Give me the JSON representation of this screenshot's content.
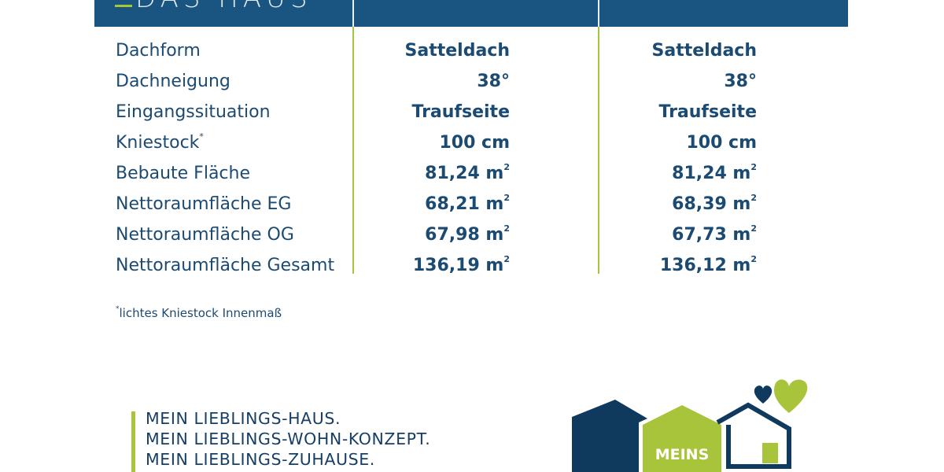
{
  "header": {
    "title": "DAS HAUS"
  },
  "rows": [
    {
      "label": "Dachform",
      "sup": "",
      "col1": "Satteldach",
      "col2": "Satteldach",
      "unit": ""
    },
    {
      "label": "Dachneigung",
      "sup": "",
      "col1": "38°",
      "col2": "38°",
      "unit": ""
    },
    {
      "label": "Eingangssituation",
      "sup": "",
      "col1": "Traufseite",
      "col2": "Traufseite",
      "unit": ""
    },
    {
      "label": "Kniestock",
      "sup": "*",
      "col1": "100 cm",
      "col2": "100 cm",
      "unit": ""
    },
    {
      "label": "Bebaute Fläche",
      "sup": "",
      "col1": "81,24 m",
      "col2": "81,24 m",
      "unit": "2"
    },
    {
      "label": "Nettoraumfläche EG",
      "sup": "",
      "col1": "68,21 m",
      "col2": "68,39 m",
      "unit": "2"
    },
    {
      "label": "Nettoraumfläche OG",
      "sup": "",
      "col1": "67,98 m",
      "col2": "67,73 m",
      "unit": "2"
    },
    {
      "label": "Nettoraumfläche Gesamt",
      "sup": "",
      "col1": "136,19 m",
      "col2": "136,12 m",
      "unit": "2"
    }
  ],
  "footnote": {
    "marker": "*",
    "text": "lichtes Kniestock Innenmaß"
  },
  "slogan": [
    "MEIN LIEBLINGS-HAUS.",
    "MEIN LIEBLINGS-WOHN-KONZEPT.",
    "MEIN LIEBLINGS-ZUHAUSE."
  ],
  "logo": {
    "text": "MEINS"
  },
  "colors": {
    "navy": "#1a5582",
    "dark_navy": "#0f3a5e",
    "green": "#a7c43a",
    "text": "#1b4a72"
  }
}
